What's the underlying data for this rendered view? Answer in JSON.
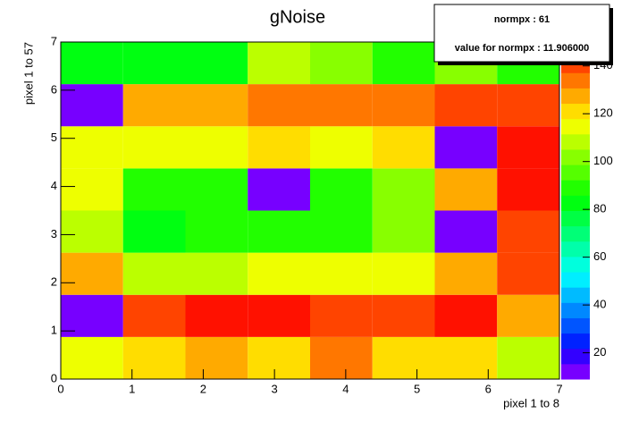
{
  "chart_data": {
    "type": "heatmap",
    "title": "gNoise",
    "x_label": "pixel 1 to 8",
    "y_label": "pixel 1 to 57",
    "xlim": [
      0,
      7
    ],
    "ylim": [
      0,
      7
    ],
    "xticks": [
      0,
      1,
      2,
      3,
      4,
      5,
      6,
      7
    ],
    "yticks": [
      0,
      1,
      2,
      3,
      4,
      5,
      6,
      7
    ],
    "xbins": [
      0,
      0.875,
      1.75,
      2.625,
      3.5,
      4.375,
      5.25,
      6.125,
      7
    ],
    "ybins": [
      0,
      0.875,
      1.75,
      2.625,
      3.5,
      4.375,
      5.25,
      6.125,
      7
    ],
    "z": [
      [
        116,
        122,
        130,
        122,
        135,
        122,
        122,
        108
      ],
      [
        12,
        143,
        148,
        148,
        143,
        143,
        148,
        130
      ],
      [
        130,
        108,
        108,
        116,
        116,
        116,
        130,
        143
      ],
      [
        108,
        84,
        86,
        86,
        86,
        100,
        12,
        143
      ],
      [
        116,
        86,
        86,
        12,
        86,
        100,
        130,
        148
      ],
      [
        116,
        116,
        116,
        122,
        116,
        122,
        12,
        148
      ],
      [
        10,
        130,
        130,
        135,
        135,
        135,
        143,
        143
      ],
      [
        85,
        85,
        85,
        110,
        100,
        88,
        100,
        88
      ]
    ],
    "zlim": [
      9,
      150
    ],
    "zticks": [
      20,
      40,
      60,
      80,
      100,
      120,
      140
    ],
    "palette": [
      "#7700ff",
      "#3300ff",
      "#0022ff",
      "#0055ff",
      "#0088ff",
      "#00bbff",
      "#00eeff",
      "#00ffdd",
      "#00ffaa",
      "#00ff77",
      "#00ff44",
      "#00ff11",
      "#22ff00",
      "#55ff00",
      "#88ff00",
      "#bbff00",
      "#eeff00",
      "#ffdd00",
      "#ffaa00",
      "#ff7700",
      "#ff4400",
      "#ff1100"
    ],
    "stats": {
      "line1": "normpx : 61",
      "line2": "value for normpx : 11.906000"
    }
  }
}
